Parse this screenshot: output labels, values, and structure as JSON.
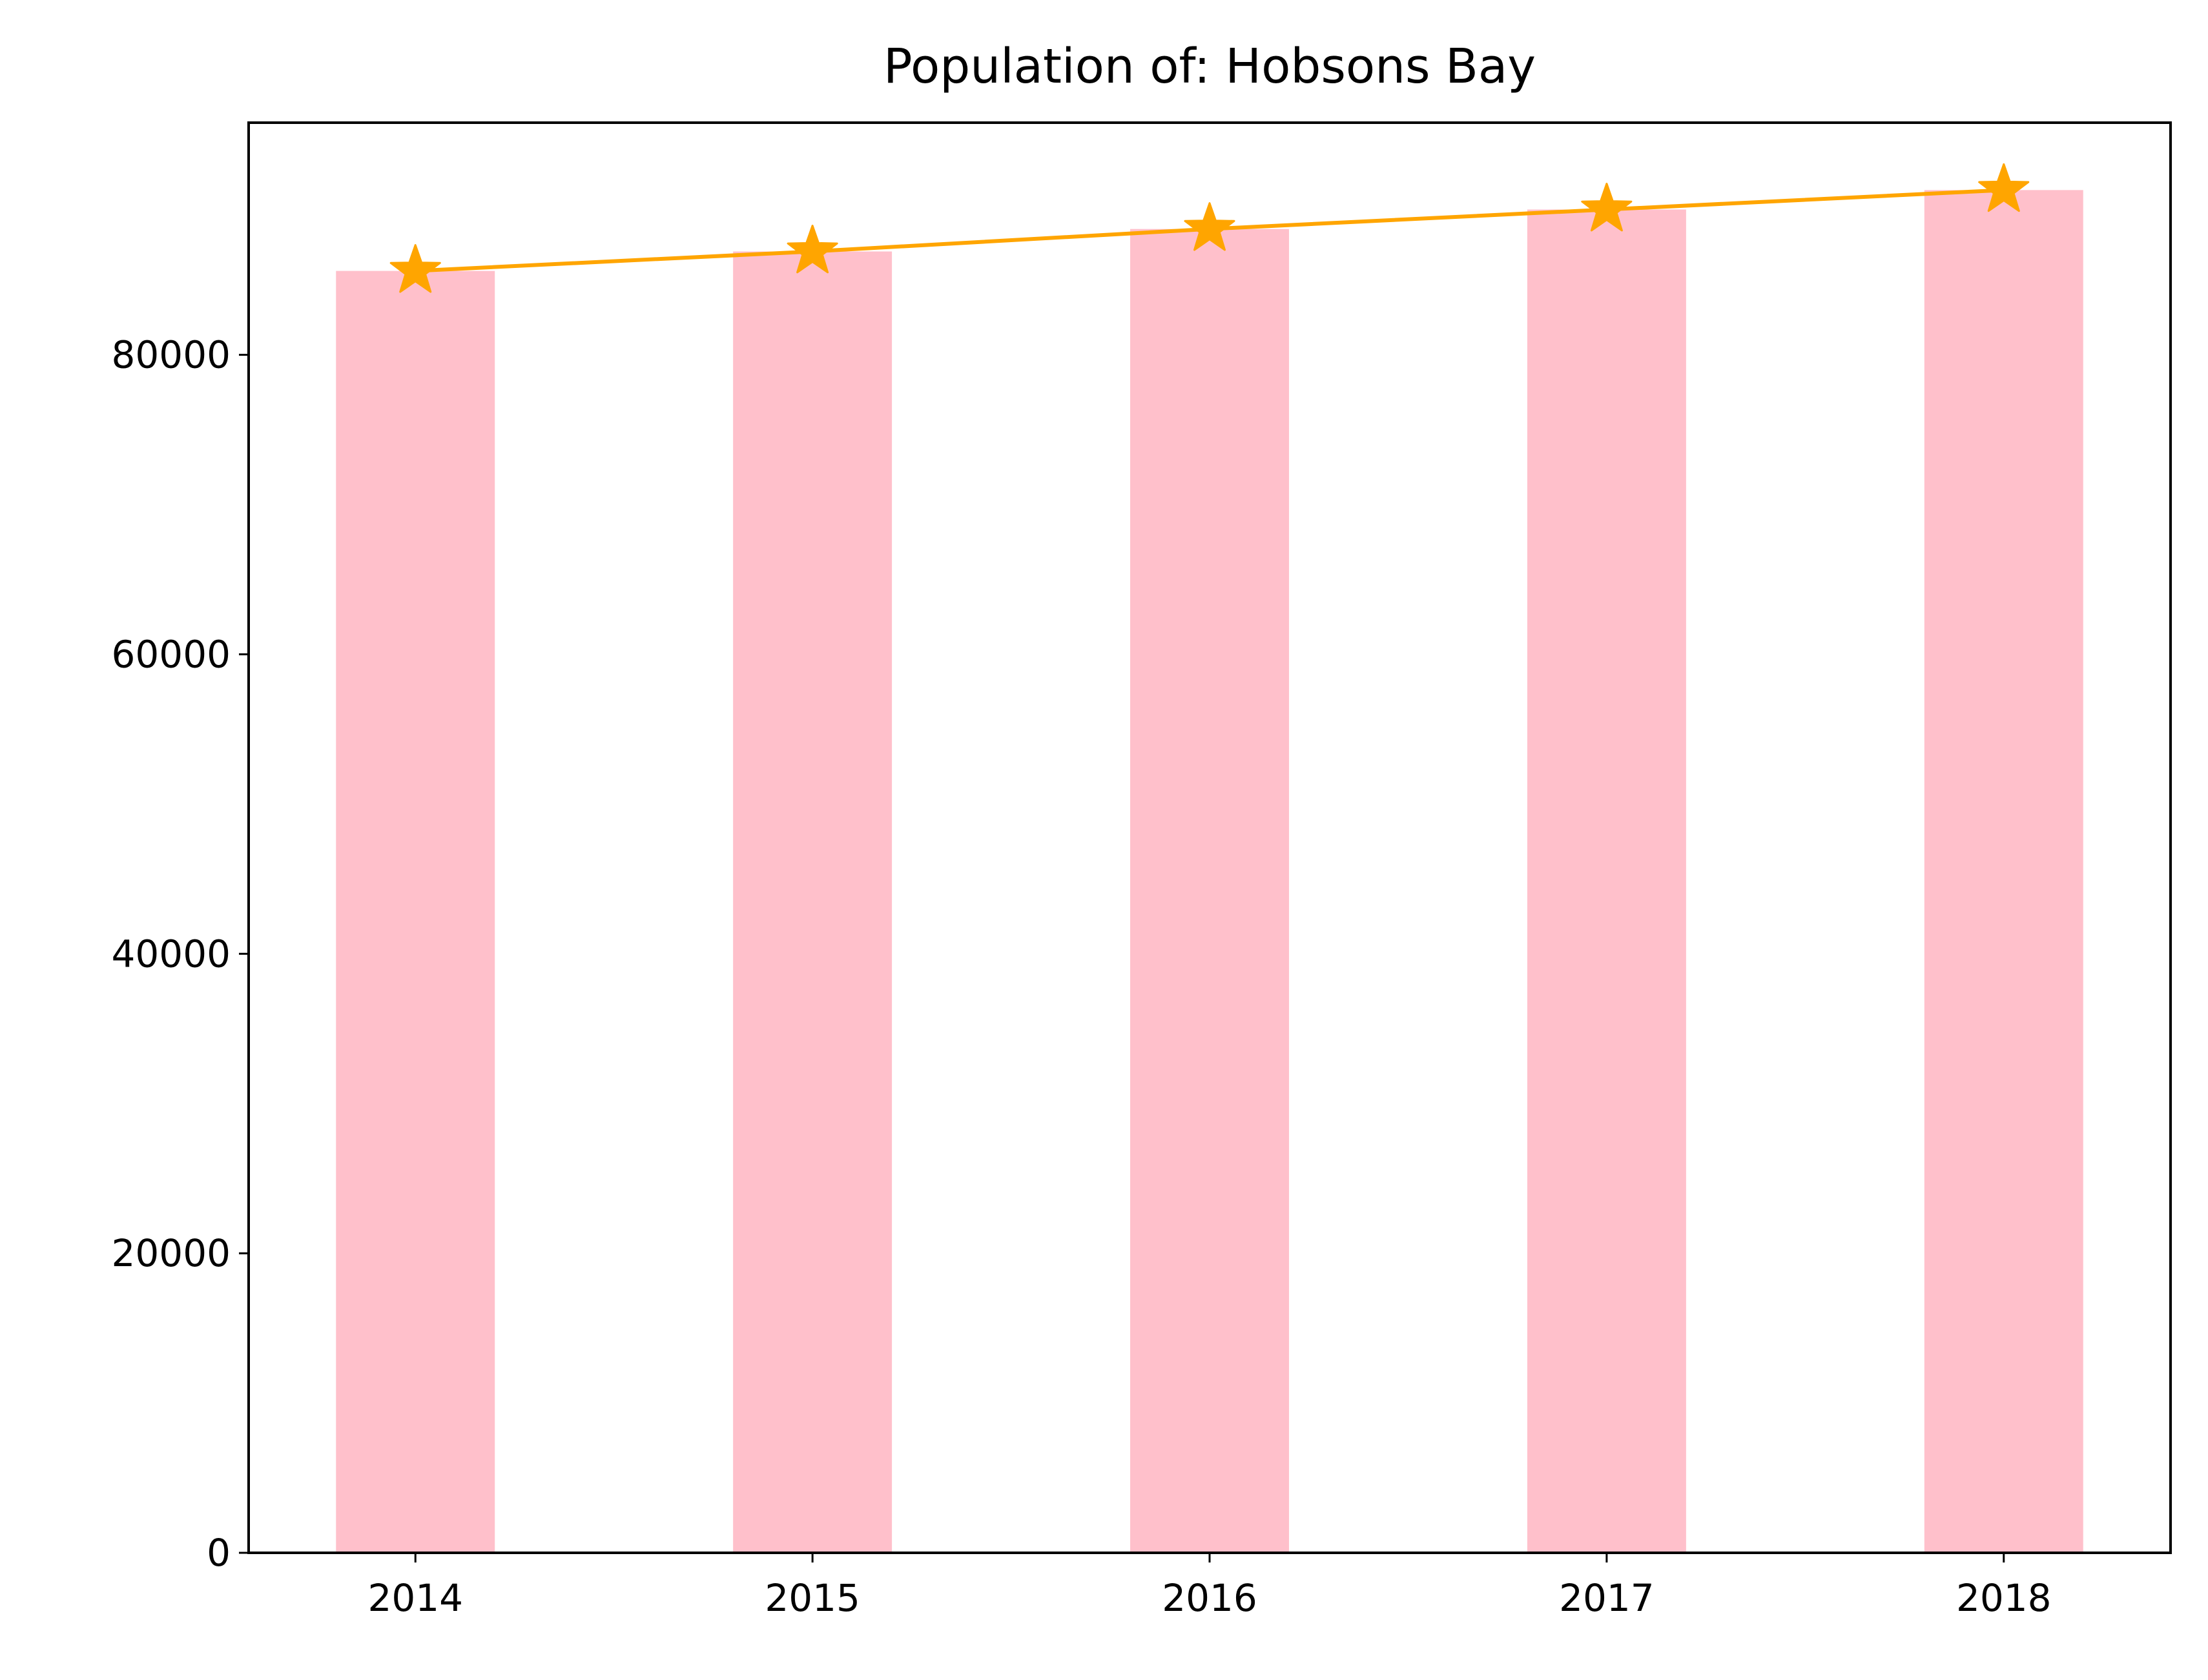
{
  "chart_data": {
    "type": "bar",
    "title": "Population of: Hobsons Bay",
    "xlabel": "",
    "ylabel": "",
    "categories": [
      "2014",
      "2015",
      "2016",
      "2017",
      "2018"
    ],
    "values": [
      85600,
      86900,
      88400,
      89700,
      91000
    ],
    "line_values": [
      85600,
      86900,
      88400,
      89700,
      91000
    ],
    "ylim": [
      0,
      95500
    ],
    "yticks": [
      0,
      20000,
      40000,
      60000,
      80000
    ],
    "ytick_labels": [
      "0",
      "20000",
      "40000",
      "60000",
      "80000"
    ],
    "grid": false,
    "legend": "none",
    "bar_color": "#ffc0cb",
    "line_color": "#ffa500",
    "marker": "star"
  }
}
